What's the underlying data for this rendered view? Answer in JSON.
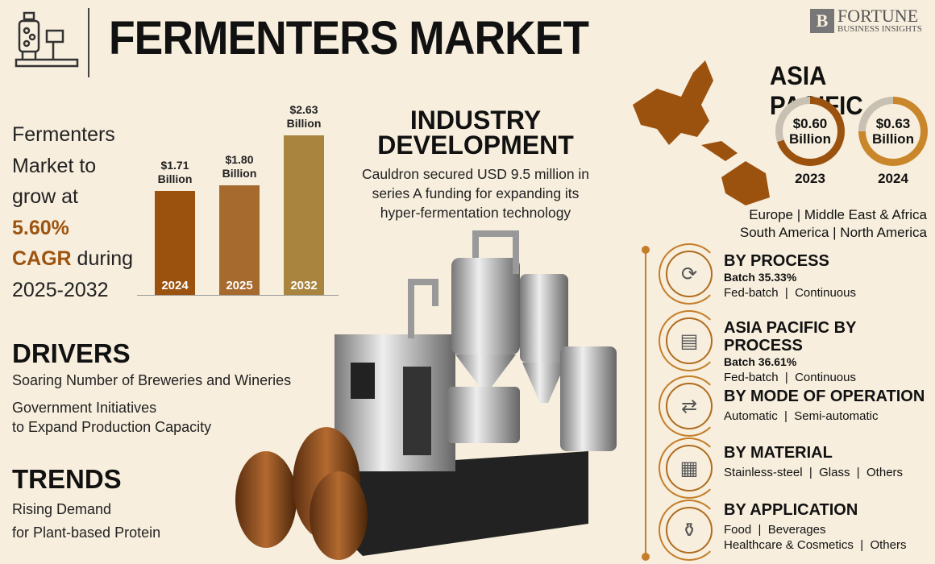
{
  "header": {
    "title": "FERMENTERS MARKET",
    "logo_main": "FORTUNE",
    "logo_sub": "BUSINESS INSIGHTS",
    "icon": "fermenter-icon"
  },
  "growth": {
    "line1": "Fermenters",
    "line2": "Market to",
    "line3": "grow at",
    "cagr": "5.60%",
    "cagr_label": "CAGR",
    "during": " during",
    "period": "2025-2032"
  },
  "chart_data": {
    "type": "bar",
    "categories": [
      "2024",
      "2025",
      "2032"
    ],
    "values": [
      1.71,
      1.8,
      2.63
    ],
    "data_labels": [
      [
        "$1.71",
        "Billion"
      ],
      [
        "$1.80",
        "Billion"
      ],
      [
        "$2.63",
        "Billion"
      ]
    ],
    "colors": [
      "#9c520f",
      "#a6692e",
      "#a8843e"
    ]
  },
  "industry": {
    "title1": "INDUSTRY",
    "title2": "DEVELOPMENT",
    "text": "Cauldron secured USD 9.5 million in series A funding for expanding its hyper-fermentation technology"
  },
  "drivers": {
    "title": "DRIVERS",
    "items": [
      "Soaring Number of Breweries and Wineries",
      "Government Initiatives",
      "to Expand Production Capacity"
    ]
  },
  "trends": {
    "title": "TRENDS",
    "items": [
      "Rising Demand",
      "for Plant-based Protein"
    ]
  },
  "asia_pacific": {
    "title": "ASIA PACIFIC",
    "values": [
      {
        "year": "2023",
        "value": "$0.60",
        "unit": "Billion"
      },
      {
        "year": "2024",
        "value": "$0.63",
        "unit": "Billion"
      }
    ],
    "colors": [
      "#9c520f",
      "#c9862a"
    ]
  },
  "regions": {
    "line1": "Europe | Middle East & Africa",
    "line2": "South America | North America"
  },
  "segments": [
    {
      "title": "BY PROCESS",
      "highlight": "Batch 35.33%",
      "options": "Fed-batch  |  Continuous",
      "icon": "cycle-icon"
    },
    {
      "title": "ASIA PACIFIC BY PROCESS",
      "highlight": "Batch 36.61%",
      "options": "Fed-batch  |  Continuous",
      "icon": "container-icon"
    },
    {
      "title": "BY MODE OF OPERATION",
      "options": "Automatic  |  Semi-automatic",
      "icon": "workflow-icon"
    },
    {
      "title": "BY MATERIAL",
      "options": "Stainless-steel  |  Glass  |  Others",
      "icon": "materials-icon"
    },
    {
      "title": "BY APPLICATION",
      "options": "Food  |  Beverages",
      "options2": "Healthcare & Cosmetics  |  Others",
      "icon": "products-icon"
    }
  ]
}
